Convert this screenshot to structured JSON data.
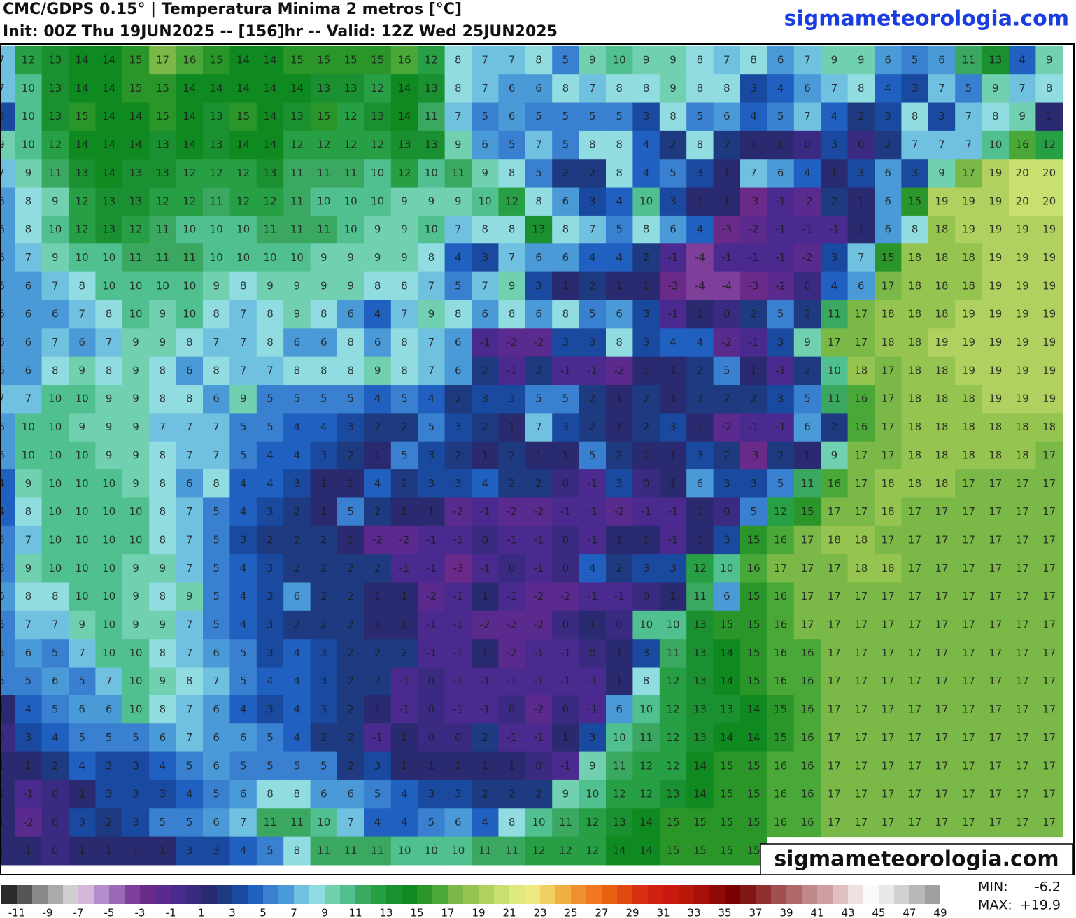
{
  "header": {
    "title": "CMC/GDPS 0.15° | Temperatura Minima 2 metros [°C]",
    "subtitle": "Init: 00Z Thu 19JUN2025 -- [156]hr -- Valid: 12Z Wed 25JUN2025",
    "site": "sigmameteorologia.com"
  },
  "map": {
    "watermark": "sigmameteorologia.com",
    "grid": [
      [
        7,
        12,
        13,
        14,
        14,
        15,
        17,
        16,
        15,
        14,
        14,
        15,
        15,
        15,
        15,
        16,
        12,
        8,
        7,
        7,
        8,
        5,
        9,
        10,
        9,
        9,
        8,
        7,
        8,
        6,
        7,
        9,
        9,
        6,
        5,
        6,
        11,
        13,
        4,
        9
      ],
      [
        7,
        10,
        13,
        14,
        14,
        15,
        15,
        14,
        14,
        14,
        14,
        14,
        13,
        13,
        12,
        14,
        13,
        8,
        7,
        6,
        6,
        8,
        7,
        8,
        8,
        9,
        8,
        8,
        3,
        4,
        6,
        7,
        8,
        4,
        3,
        7,
        5,
        9,
        7,
        8
      ],
      [
        3,
        10,
        13,
        15,
        14,
        14,
        15,
        14,
        13,
        15,
        14,
        13,
        15,
        12,
        13,
        14,
        11,
        7,
        5,
        6,
        5,
        5,
        5,
        5,
        3,
        8,
        5,
        6,
        4,
        5,
        7,
        4,
        2,
        3,
        8,
        3,
        7,
        8,
        9,
        1
      ],
      [
        9,
        10,
        12,
        14,
        14,
        14,
        13,
        14,
        13,
        14,
        14,
        12,
        12,
        12,
        12,
        13,
        13,
        9,
        6,
        5,
        7,
        5,
        8,
        8,
        4,
        2,
        8,
        2,
        1,
        1,
        0,
        3,
        0,
        2,
        7,
        7,
        7,
        10,
        16,
        12
      ],
      [
        7,
        9,
        11,
        13,
        14,
        13,
        13,
        12,
        12,
        12,
        13,
        11,
        11,
        11,
        10,
        12,
        10,
        11,
        9,
        8,
        5,
        2,
        2,
        8,
        4,
        5,
        3,
        1,
        7,
        6,
        4,
        1,
        3,
        6,
        3,
        9,
        17,
        19,
        20,
        20
      ],
      [
        6,
        8,
        9,
        12,
        13,
        13,
        12,
        12,
        11,
        12,
        12,
        11,
        10,
        10,
        10,
        9,
        9,
        9,
        10,
        12,
        8,
        6,
        3,
        4,
        10,
        3,
        1,
        1,
        -3,
        -1,
        -2,
        2,
        1,
        6,
        15,
        19,
        19,
        19,
        20,
        20
      ],
      [
        6,
        8,
        10,
        12,
        13,
        12,
        11,
        10,
        10,
        10,
        11,
        11,
        11,
        10,
        9,
        9,
        10,
        7,
        8,
        8,
        13,
        8,
        7,
        5,
        8,
        6,
        4,
        -3,
        -2,
        -1,
        -1,
        -1,
        1,
        6,
        8,
        18,
        19,
        19,
        19,
        19
      ],
      [
        6,
        7,
        9,
        10,
        10,
        11,
        11,
        11,
        10,
        10,
        10,
        10,
        9,
        9,
        9,
        9,
        8,
        4,
        3,
        7,
        6,
        6,
        4,
        4,
        2,
        -1,
        -4,
        -1,
        -1,
        -1,
        -2,
        3,
        7,
        15,
        18,
        18,
        18,
        19,
        19,
        19
      ],
      [
        6,
        6,
        7,
        8,
        10,
        10,
        10,
        10,
        9,
        8,
        9,
        9,
        9,
        9,
        8,
        8,
        7,
        5,
        7,
        9,
        3,
        1,
        2,
        1,
        1,
        -3,
        -4,
        -4,
        -3,
        -2,
        0,
        4,
        6,
        17,
        18,
        18,
        18,
        19,
        19,
        19
      ],
      [
        6,
        6,
        6,
        7,
        8,
        10,
        9,
        10,
        8,
        7,
        8,
        9,
        8,
        6,
        4,
        7,
        9,
        8,
        6,
        8,
        6,
        8,
        5,
        6,
        3,
        -1,
        1,
        0,
        2,
        5,
        2,
        11,
        17,
        18,
        18,
        18,
        19,
        19,
        19,
        19
      ],
      [
        6,
        6,
        7,
        6,
        7,
        9,
        9,
        8,
        7,
        7,
        8,
        6,
        6,
        8,
        6,
        8,
        7,
        6,
        -1,
        -2,
        -2,
        3,
        3,
        8,
        3,
        4,
        4,
        -2,
        -1,
        3,
        9,
        17,
        17,
        18,
        18,
        19,
        19,
        19,
        19,
        19
      ],
      [
        6,
        6,
        8,
        9,
        8,
        9,
        8,
        6,
        8,
        7,
        7,
        8,
        8,
        8,
        9,
        8,
        7,
        6,
        2,
        -1,
        2,
        -1,
        -1,
        -2,
        1,
        1,
        2,
        5,
        1,
        -1,
        2,
        10,
        18,
        17,
        18,
        18,
        19,
        19,
        19,
        19
      ],
      [
        7,
        7,
        10,
        10,
        9,
        9,
        8,
        8,
        6,
        9,
        5,
        5,
        5,
        5,
        4,
        5,
        4,
        2,
        3,
        3,
        5,
        5,
        2,
        1,
        2,
        1,
        2,
        2,
        2,
        3,
        5,
        11,
        16,
        17,
        18,
        18,
        18,
        19,
        19,
        19
      ],
      [
        6,
        10,
        10,
        9,
        9,
        9,
        7,
        7,
        7,
        5,
        5,
        4,
        4,
        3,
        2,
        2,
        5,
        3,
        2,
        1,
        7,
        3,
        2,
        1,
        2,
        3,
        1,
        -2,
        -1,
        -1,
        6,
        2,
        16,
        17,
        18,
        18,
        18,
        18,
        18,
        18
      ],
      [
        6,
        10,
        10,
        10,
        9,
        9,
        8,
        7,
        7,
        5,
        4,
        4,
        3,
        2,
        1,
        5,
        3,
        2,
        1,
        2,
        1,
        1,
        5,
        2,
        1,
        1,
        3,
        2,
        -3,
        2,
        1,
        9,
        17,
        17,
        18,
        18,
        18,
        18,
        18,
        17
      ],
      [
        4,
        9,
        10,
        10,
        10,
        9,
        8,
        6,
        8,
        4,
        4,
        3,
        1,
        1,
        4,
        2,
        3,
        3,
        4,
        2,
        2,
        0,
        -1,
        3,
        0,
        1,
        6,
        3,
        3,
        5,
        11,
        16,
        17,
        18,
        18,
        18,
        17,
        17,
        17,
        17
      ],
      [
        4,
        8,
        10,
        10,
        10,
        10,
        8,
        7,
        5,
        4,
        3,
        2,
        1,
        5,
        2,
        1,
        1,
        -2,
        -1,
        -2,
        -2,
        -1,
        -1,
        -2,
        -1,
        -1,
        1,
        0,
        5,
        12,
        15,
        17,
        17,
        18,
        17,
        17,
        17,
        17,
        17,
        17
      ],
      [
        5,
        7,
        10,
        10,
        10,
        10,
        8,
        7,
        5,
        3,
        2,
        2,
        2,
        1,
        -2,
        -2,
        -1,
        -1,
        0,
        -1,
        -1,
        0,
        -1,
        1,
        1,
        -1,
        1,
        3,
        15,
        16,
        17,
        18,
        18,
        17,
        17,
        17,
        17,
        17,
        17,
        17
      ],
      [
        5,
        9,
        10,
        10,
        10,
        9,
        9,
        7,
        5,
        4,
        3,
        2,
        2,
        2,
        2,
        -1,
        -1,
        -3,
        -1,
        0,
        -1,
        0,
        4,
        2,
        3,
        3,
        12,
        10,
        16,
        17,
        17,
        17,
        18,
        18,
        17,
        17,
        17,
        17,
        17,
        17
      ],
      [
        6,
        8,
        8,
        10,
        10,
        9,
        8,
        9,
        5,
        4,
        3,
        6,
        2,
        2,
        1,
        1,
        -2,
        -1,
        1,
        -1,
        -2,
        -2,
        -1,
        -1,
        0,
        1,
        11,
        6,
        15,
        16,
        17,
        17,
        17,
        17,
        17,
        17,
        17,
        17,
        17,
        17
      ],
      [
        5,
        7,
        7,
        9,
        10,
        9,
        9,
        7,
        5,
        4,
        3,
        2,
        2,
        2,
        1,
        1,
        -1,
        -1,
        -2,
        -2,
        -2,
        0,
        1,
        0,
        10,
        10,
        13,
        15,
        15,
        16,
        17,
        17,
        17,
        17,
        17,
        17,
        17,
        17,
        17,
        17
      ],
      [
        5,
        6,
        5,
        7,
        10,
        10,
        8,
        7,
        6,
        5,
        3,
        4,
        3,
        2,
        2,
        2,
        -1,
        -1,
        1,
        -2,
        -1,
        -1,
        0,
        1,
        3,
        11,
        13,
        14,
        15,
        16,
        16,
        17,
        17,
        17,
        17,
        17,
        17,
        17,
        17,
        17
      ],
      [
        5,
        5,
        6,
        5,
        7,
        10,
        9,
        8,
        7,
        5,
        4,
        4,
        3,
        2,
        2,
        -1,
        0,
        -1,
        -1,
        -1,
        -1,
        -1,
        -1,
        1,
        8,
        12,
        13,
        14,
        15,
        16,
        16,
        17,
        17,
        17,
        17,
        17,
        17,
        17,
        17,
        17
      ],
      [
        1,
        4,
        5,
        6,
        6,
        10,
        8,
        7,
        6,
        4,
        3,
        4,
        3,
        2,
        1,
        -1,
        0,
        -1,
        -1,
        0,
        -2,
        0,
        -1,
        6,
        10,
        12,
        13,
        13,
        14,
        15,
        16,
        17,
        17,
        17,
        17,
        17,
        17,
        17,
        17,
        17
      ],
      [
        0,
        3,
        4,
        5,
        5,
        5,
        6,
        7,
        6,
        6,
        5,
        4,
        2,
        2,
        -1,
        1,
        0,
        0,
        2,
        -1,
        -1,
        1,
        3,
        10,
        11,
        12,
        13,
        14,
        14,
        15,
        16,
        17,
        17,
        17,
        17,
        17,
        17,
        17,
        17,
        17
      ],
      [
        1,
        1,
        2,
        4,
        3,
        3,
        4,
        5,
        6,
        5,
        5,
        5,
        5,
        2,
        3,
        1,
        1,
        1,
        1,
        1,
        0,
        -1,
        9,
        11,
        12,
        12,
        14,
        15,
        15,
        16,
        16,
        17,
        17,
        17,
        17,
        17,
        17,
        17,
        17,
        17
      ],
      [
        1,
        -1,
        0,
        1,
        3,
        3,
        3,
        4,
        5,
        6,
        8,
        8,
        6,
        6,
        5,
        4,
        3,
        3,
        2,
        2,
        2,
        9,
        10,
        12,
        12,
        13,
        14,
        15,
        15,
        16,
        16,
        17,
        17,
        17,
        17,
        17,
        17,
        17,
        17,
        17
      ],
      [
        1,
        -2,
        0,
        3,
        2,
        3,
        5,
        5,
        6,
        7,
        11,
        11,
        10,
        7,
        4,
        4,
        5,
        6,
        4,
        8,
        10,
        11,
        12,
        13,
        14,
        15,
        15,
        15,
        15,
        16,
        16,
        17,
        17,
        17,
        17,
        17,
        17,
        17,
        17,
        17
      ],
      [
        1,
        1,
        0,
        1,
        1,
        1,
        1,
        3,
        3,
        4,
        5,
        8,
        11,
        11,
        11,
        10,
        10,
        10,
        11,
        11,
        12,
        12,
        12,
        14,
        14,
        15,
        15,
        15,
        15
      ]
    ]
  },
  "colorbar": {
    "ticks": [
      -11,
      -9,
      -7,
      -5,
      -3,
      -1,
      1,
      3,
      5,
      7,
      9,
      11,
      13,
      15,
      17,
      19,
      21,
      23,
      25,
      27,
      29,
      31,
      33,
      35,
      37,
      39,
      41,
      43,
      45,
      47,
      49
    ],
    "colors": [
      "#2b2b2b",
      "#555555",
      "#888888",
      "#aaaaaa",
      "#cfcfcf",
      "#d4b8dc",
      "#b58ccc",
      "#9a6ab8",
      "#7e3f9a",
      "#6a2a8a",
      "#5a2a8e",
      "#4a2a8e",
      "#3a2a82",
      "#2a2a70",
      "#1e3a80",
      "#1a4aa0",
      "#2060c0",
      "#3a80d0",
      "#4a9ad8",
      "#70c0e0",
      "#90dce0",
      "#70d0b0",
      "#50c090",
      "#3aa860",
      "#27a045",
      "#1a9030",
      "#0f8a20",
      "#2a962a",
      "#4aa838",
      "#7ab848",
      "#96c450",
      "#b0d060",
      "#c8e070",
      "#e0e880",
      "#f0e880",
      "#f0d060",
      "#f0b040",
      "#f09030",
      "#f07820",
      "#e86010",
      "#e04a10",
      "#d83010",
      "#d02010",
      "#c81810",
      "#b81808",
      "#a81008",
      "#900808",
      "#780000",
      "#801818",
      "#903030",
      "#a05050",
      "#b06868",
      "#c08888",
      "#d0a0a0",
      "#e0c0c0",
      "#f0e0e0",
      "#fafafa",
      "#e8e8e8",
      "#d0d0d0",
      "#b8b8b8",
      "#a0a0a0"
    ]
  },
  "stats": [
    {
      "label": "MIN:",
      "value": "-6.2"
    },
    {
      "label": "MAX:",
      "value": "+19.9"
    }
  ]
}
